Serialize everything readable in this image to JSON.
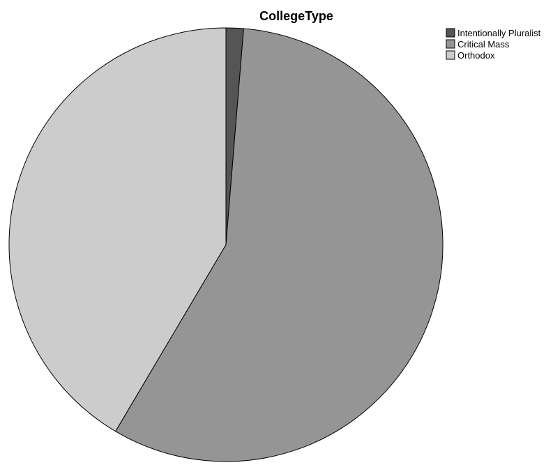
{
  "chart_data": {
    "type": "pie",
    "title": "CollegeType",
    "legend_position": "top-right",
    "start_angle_deg": 0,
    "direction": "clockwise",
    "slices": [
      {
        "label": "Intentionally Pluralist",
        "value": 1.3,
        "color": "#555555"
      },
      {
        "label": "Critical Mass",
        "value": 57.2,
        "color": "#959595"
      },
      {
        "label": "Orthodox",
        "value": 41.5,
        "color": "#cccccc"
      }
    ]
  }
}
